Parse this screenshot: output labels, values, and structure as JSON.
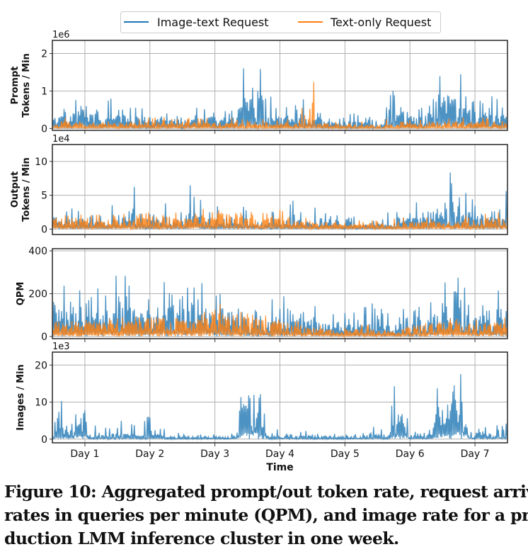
{
  "caption": {
    "lines": [
      "Figure 10: Aggregated prompt/out token rate, request arrival",
      "rates in queries per minute (QPM), and image rate for a pro-",
      "duction LMM inference cluster in one week."
    ]
  },
  "legend": {
    "entries": [
      {
        "label": "Image-text Request",
        "color": "#1f77b4"
      },
      {
        "label": "Text-only Request",
        "color": "#ff7f0e"
      }
    ],
    "placement": "top-center"
  },
  "chart_data": [
    {
      "type": "line",
      "title": "",
      "ylabel": [
        "Prompt",
        "Tokens / Min"
      ],
      "xlabel": "",
      "offset_label": "1e6",
      "ylim": [
        -0.05,
        2.35
      ],
      "yticks": [
        0,
        1,
        2
      ],
      "ytick_labels": [
        "0",
        "1",
        "2"
      ],
      "xlim": [
        0.5,
        7.5
      ],
      "grid": true,
      "series": [
        {
          "name": "Image-text Request",
          "color": "#1f77b4",
          "x": [
            0.5,
            0.6,
            0.7,
            0.8,
            0.9,
            0.95,
            1.0,
            1.1,
            1.2,
            1.3,
            1.5,
            1.7,
            2.0,
            2.3,
            2.6,
            3.0,
            3.3,
            3.4,
            3.5,
            3.6,
            3.7,
            3.8,
            3.9,
            4.0,
            4.2,
            4.4,
            4.6,
            4.8,
            5.0,
            5.3,
            5.6,
            5.8,
            5.9,
            6.0,
            6.2,
            6.4,
            6.5,
            6.6,
            6.7,
            6.8,
            6.9,
            7.0,
            7.2,
            7.4,
            7.5
          ],
          "peak": [
            0.5,
            0.75,
            1.1,
            1.1,
            1.8,
            1.7,
            1.0,
            0.8,
            0.55,
            0.6,
            1.1,
            0.6,
            0.55,
            0.5,
            0.65,
            0.45,
            0.5,
            1.95,
            1.6,
            2.0,
            1.95,
            1.2,
            0.7,
            0.6,
            0.55,
            0.95,
            0.45,
            0.5,
            0.35,
            0.5,
            0.55,
            1.3,
            1.0,
            0.5,
            0.6,
            1.4,
            2.2,
            1.9,
            1.95,
            1.9,
            1.1,
            0.7,
            0.9,
            0.9,
            0.95
          ],
          "base": [
            0.2,
            0.25,
            0.3,
            0.3,
            0.5,
            0.6,
            0.35,
            0.3,
            0.25,
            0.2,
            0.25,
            0.2,
            0.2,
            0.2,
            0.2,
            0.2,
            0.2,
            0.7,
            0.7,
            0.75,
            0.7,
            0.35,
            0.25,
            0.25,
            0.2,
            0.25,
            0.2,
            0.15,
            0.15,
            0.15,
            0.2,
            0.45,
            0.4,
            0.2,
            0.25,
            0.6,
            0.7,
            0.7,
            0.7,
            0.65,
            0.3,
            0.25,
            0.3,
            0.3,
            0.3
          ]
        },
        {
          "name": "Text-only Request",
          "color": "#ff7f0e",
          "x": [
            0.5,
            1.0,
            1.5,
            2.0,
            2.5,
            3.0,
            3.5,
            4.0,
            4.3,
            4.4,
            4.45,
            4.5,
            4.6,
            5.0,
            5.5,
            5.8,
            6.0,
            6.5,
            7.0,
            7.5
          ],
          "peak": [
            0.3,
            0.3,
            0.3,
            0.3,
            0.3,
            0.3,
            0.28,
            0.25,
            0.3,
            1.0,
            0.5,
            1.82,
            0.25,
            0.22,
            0.22,
            0.5,
            0.25,
            0.3,
            0.3,
            0.3
          ],
          "base": [
            0.12,
            0.12,
            0.12,
            0.12,
            0.12,
            0.12,
            0.1,
            0.1,
            0.1,
            0.1,
            0.1,
            0.1,
            0.1,
            0.08,
            0.08,
            0.1,
            0.1,
            0.12,
            0.12,
            0.12
          ]
        }
      ]
    },
    {
      "type": "line",
      "title": "",
      "ylabel": [
        "Output",
        "Tokens / Min"
      ],
      "xlabel": "",
      "offset_label": "1e4",
      "ylim": [
        -0.8,
        12.5
      ],
      "yticks": [
        0,
        5,
        10
      ],
      "ytick_labels": [
        "0",
        "5",
        "10"
      ],
      "xlim": [
        0.5,
        7.5
      ],
      "grid": true,
      "series": [
        {
          "name": "Image-text Request",
          "color": "#1f77b4",
          "x": [
            0.5,
            0.52,
            0.6,
            0.8,
            1.0,
            1.2,
            1.4,
            1.55,
            1.65,
            1.75,
            1.85,
            2.0,
            2.15,
            2.2,
            2.3,
            2.5,
            2.6,
            2.7,
            2.8,
            3.0,
            3.3,
            3.5,
            3.8,
            4.0,
            4.3,
            4.5,
            4.8,
            5.0,
            5.3,
            5.5,
            5.7,
            5.8,
            6.0,
            6.3,
            6.4,
            6.5,
            6.6,
            6.7,
            6.8,
            6.9,
            7.0,
            7.2,
            7.5
          ],
          "peak": [
            2.5,
            6.7,
            3.0,
            3.2,
            2.5,
            2.5,
            3.5,
            5.7,
            5.7,
            8.9,
            3.0,
            3.0,
            5.0,
            10.6,
            3.0,
            2.8,
            7.7,
            11.0,
            3.5,
            3.5,
            3.8,
            3.5,
            3.8,
            2.5,
            5.3,
            3.5,
            3.3,
            2.0,
            1.8,
            2.5,
            2.5,
            4.3,
            4.0,
            4.5,
            8.4,
            6.2,
            12.0,
            5.5,
            7.2,
            5.0,
            4.5,
            4.0,
            6.0
          ],
          "base": [
            0.8,
            1.5,
            1.0,
            1.0,
            0.8,
            0.8,
            1.0,
            1.5,
            1.5,
            2.5,
            1.0,
            0.8,
            1.0,
            1.5,
            0.8,
            0.8,
            1.5,
            2.0,
            0.8,
            0.8,
            0.8,
            0.8,
            1.0,
            0.8,
            1.0,
            0.8,
            0.8,
            0.5,
            0.5,
            0.5,
            0.8,
            1.5,
            1.3,
            1.5,
            2.5,
            2.0,
            2.5,
            1.8,
            2.0,
            1.6,
            1.5,
            1.3,
            1.5
          ]
        },
        {
          "name": "Text-only Request",
          "color": "#ff7f0e",
          "x": [
            0.5,
            1.0,
            1.5,
            1.9,
            2.0,
            2.2,
            2.4,
            2.6,
            2.8,
            3.0,
            3.1,
            3.3,
            3.6,
            3.9,
            4.0,
            4.2,
            4.5,
            4.8,
            5.0,
            5.3,
            5.6,
            5.8,
            6.0,
            6.3,
            6.6,
            6.8,
            7.0,
            7.2,
            7.5
          ],
          "peak": [
            2.5,
            2.5,
            2.5,
            2.5,
            2.8,
            3.3,
            2.5,
            2.5,
            3.0,
            3.0,
            3.7,
            3.0,
            2.5,
            2.8,
            3.0,
            2.0,
            1.8,
            1.5,
            1.0,
            1.5,
            1.3,
            2.0,
            1.5,
            1.8,
            2.0,
            2.0,
            3.0,
            2.5,
            2.5
          ],
          "base": [
            1.0,
            1.0,
            1.0,
            1.2,
            1.5,
            1.8,
            1.2,
            1.2,
            1.5,
            1.5,
            2.0,
            1.5,
            1.3,
            1.5,
            1.2,
            0.9,
            0.8,
            0.7,
            0.5,
            0.7,
            0.6,
            0.7,
            0.8,
            0.9,
            1.0,
            1.0,
            1.2,
            1.2,
            1.2
          ]
        }
      ]
    },
    {
      "type": "line",
      "title": "",
      "ylabel": [
        "QPM"
      ],
      "xlabel": "",
      "offset_label": "",
      "ylim": [
        -10,
        410
      ],
      "yticks": [
        0,
        200,
        400
      ],
      "ytick_labels": [
        "0",
        "200",
        "400"
      ],
      "xlim": [
        0.5,
        7.5
      ],
      "grid": true,
      "series": [
        {
          "name": "Image-text Request",
          "color": "#1f77b4",
          "x": [
            0.5,
            0.7,
            0.9,
            1.0,
            1.2,
            1.3,
            1.5,
            1.6,
            1.7,
            2.0,
            2.2,
            2.3,
            2.5,
            2.7,
            2.8,
            3.0,
            3.2,
            3.5,
            3.8,
            4.0,
            4.3,
            4.5,
            4.8,
            5.0,
            5.2,
            5.5,
            5.8,
            6.0,
            6.3,
            6.5,
            6.6,
            6.7,
            6.9,
            7.0,
            7.2,
            7.5
          ],
          "peak": [
            230,
            240,
            230,
            170,
            250,
            400,
            280,
            330,
            220,
            200,
            310,
            220,
            210,
            320,
            260,
            200,
            210,
            195,
            195,
            170,
            285,
            150,
            120,
            120,
            225,
            130,
            150,
            140,
            180,
            345,
            310,
            370,
            240,
            170,
            200,
            250
          ],
          "base": [
            110,
            110,
            100,
            90,
            100,
            110,
            110,
            120,
            100,
            80,
            100,
            90,
            90,
            110,
            100,
            90,
            80,
            70,
            70,
            60,
            70,
            55,
            45,
            45,
            50,
            45,
            50,
            50,
            70,
            100,
            100,
            100,
            80,
            70,
            70,
            80
          ]
        },
        {
          "name": "Text-only Request",
          "color": "#ff7f0e",
          "x": [
            0.5,
            1.0,
            1.5,
            1.8,
            2.0,
            2.2,
            2.35,
            2.4,
            2.6,
            2.8,
            2.95,
            3.0,
            3.1,
            3.3,
            3.6,
            3.9,
            4.0,
            4.3,
            4.5,
            4.8,
            5.0,
            5.3,
            5.6,
            5.8,
            6.0,
            6.2,
            6.5,
            6.8,
            7.0,
            7.3,
            7.5
          ],
          "peak": [
            80,
            80,
            90,
            100,
            110,
            120,
            160,
            120,
            100,
            110,
            160,
            200,
            140,
            120,
            110,
            100,
            90,
            80,
            60,
            50,
            50,
            60,
            50,
            40,
            70,
            80,
            90,
            80,
            80,
            90,
            90
          ],
          "base": [
            50,
            50,
            55,
            60,
            75,
            80,
            90,
            60,
            60,
            65,
            80,
            100,
            90,
            80,
            70,
            65,
            55,
            40,
            35,
            25,
            25,
            30,
            25,
            20,
            35,
            50,
            55,
            45,
            45,
            55,
            60
          ]
        }
      ]
    },
    {
      "type": "line",
      "title": "",
      "ylabel": [
        "Images / Min"
      ],
      "xlabel": "Time",
      "offset_label": "1e3",
      "ylim": [
        -1,
        23.5
      ],
      "yticks": [
        0,
        10,
        20
      ],
      "ytick_labels": [
        "0",
        "10",
        "20"
      ],
      "xlim": [
        0.5,
        7.5
      ],
      "grid": true,
      "xticks": [
        1,
        2,
        3,
        4,
        5,
        6,
        7
      ],
      "xtick_labels": [
        "Day 1",
        "Day 2",
        "Day 3",
        "Day 4",
        "Day 5",
        "Day 6",
        "Day 7"
      ],
      "series": [
        {
          "name": "Image-text Request",
          "color": "#1f77b4",
          "x": [
            0.5,
            0.55,
            0.6,
            0.7,
            0.8,
            0.9,
            0.95,
            1.0,
            1.05,
            1.1,
            1.3,
            1.5,
            1.7,
            2.0,
            2.1,
            2.3,
            2.5,
            2.7,
            3.0,
            3.3,
            3.35,
            3.4,
            3.5,
            3.6,
            3.7,
            3.75,
            3.8,
            3.9,
            4.0,
            4.3,
            4.6,
            5.0,
            5.3,
            5.6,
            5.7,
            5.75,
            5.8,
            5.9,
            6.0,
            6.2,
            6.35,
            6.4,
            6.5,
            6.6,
            6.7,
            6.8,
            6.85,
            6.9,
            7.0,
            7.2,
            7.5
          ],
          "peak": [
            9.5,
            10.5,
            10.5,
            13.5,
            8.0,
            22.0,
            11.0,
            20.5,
            7.0,
            4.0,
            3.0,
            5.5,
            4.5,
            6.5,
            6.8,
            1.5,
            1.8,
            1.3,
            1.3,
            1.5,
            10.0,
            16.5,
            21.5,
            20.5,
            21.0,
            17.0,
            4.0,
            2.5,
            3.0,
            3.5,
            1.8,
            1.3,
            3.5,
            5.0,
            5.0,
            16.0,
            12.0,
            13.0,
            2.0,
            3.0,
            3.5,
            15.0,
            17.5,
            16.0,
            21.8,
            22.0,
            20.0,
            4.0,
            3.0,
            3.5,
            4.5
          ],
          "base": [
            1.0,
            2.0,
            2.0,
            3.0,
            2.5,
            8.0,
            5.0,
            6.0,
            1.0,
            1.0,
            1.0,
            1.2,
            1.2,
            1.2,
            1.2,
            0.5,
            0.6,
            0.6,
            0.6,
            0.6,
            4.0,
            8.0,
            10.0,
            9.0,
            9.0,
            7.0,
            1.0,
            0.8,
            0.8,
            0.8,
            0.5,
            0.5,
            0.8,
            1.0,
            1.0,
            7.0,
            6.0,
            6.0,
            0.8,
            1.0,
            1.0,
            6.0,
            8.0,
            8.0,
            10.0,
            10.0,
            8.0,
            1.5,
            1.2,
            1.2,
            1.5
          ]
        }
      ]
    }
  ]
}
